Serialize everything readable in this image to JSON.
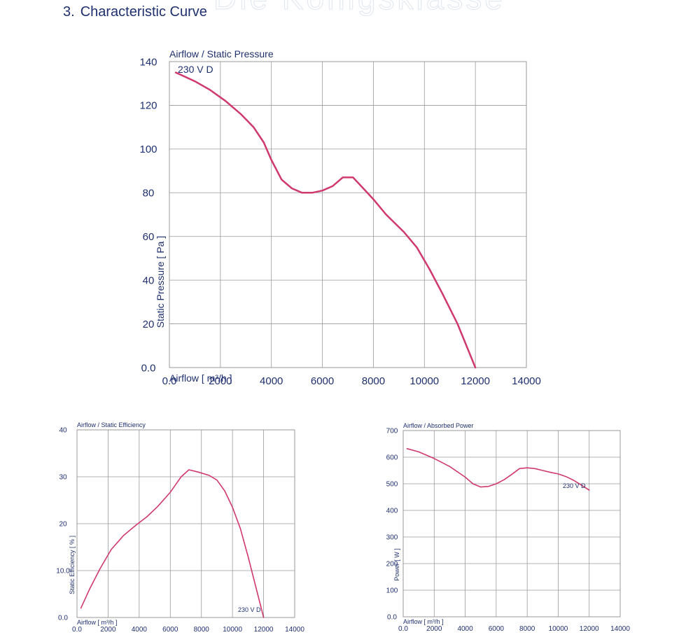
{
  "page": {
    "section_number": "3.",
    "section_title": "Characteristic Curve",
    "watermark": "Die Königsklasse"
  },
  "colors": {
    "curve": "#d03a6b",
    "grid": "#9a9a9a",
    "text": "#1f3070"
  },
  "chart_data": [
    {
      "type": "line",
      "title": "Airflow / Static Pressure",
      "xlabel": "Airflow [ m³/h ]",
      "ylabel": "Static Pressure [ Pa ]",
      "xlim": [
        0,
        14000
      ],
      "ylim": [
        0,
        140
      ],
      "xticks": [
        0,
        2000,
        4000,
        6000,
        8000,
        10000,
        12000,
        14000
      ],
      "xtick_labels": [
        "0.0",
        "2000",
        "4000",
        "6000",
        "8000",
        "10000",
        "12000",
        "14000"
      ],
      "yticks": [
        0,
        20,
        40,
        60,
        80,
        100,
        120,
        140
      ],
      "ytick_labels": [
        "0.0",
        "20",
        "40",
        "60",
        "80",
        "100",
        "120",
        "140"
      ],
      "grid": true,
      "series": [
        {
          "name": "230 V D",
          "x": [
            250,
            1000,
            1600,
            2200,
            2800,
            3300,
            3700,
            4000,
            4400,
            4800,
            5200,
            5600,
            6000,
            6400,
            6800,
            7200,
            7600,
            8000,
            8500,
            9200,
            9700,
            10200,
            10700,
            11300,
            12000
          ],
          "y": [
            135,
            131,
            127,
            122,
            116,
            110,
            103,
            95,
            86,
            82,
            80,
            80,
            81,
            83,
            87,
            87,
            82,
            77,
            70,
            62,
            55,
            45,
            34,
            20,
            0
          ]
        }
      ]
    },
    {
      "type": "line",
      "title": "Airflow / Static Efficiency",
      "xlabel": "Airflow [ m³/h ]",
      "ylabel": "Static Efficiency [ % ]",
      "xlim": [
        0,
        14000
      ],
      "ylim": [
        0,
        40
      ],
      "xticks": [
        0,
        2000,
        4000,
        6000,
        8000,
        10000,
        12000,
        14000
      ],
      "xtick_labels": [
        "0.0",
        "2000",
        "4000",
        "6000",
        "8000",
        "10000",
        "12000",
        "14000"
      ],
      "yticks": [
        0,
        10,
        20,
        30,
        40
      ],
      "ytick_labels": [
        "0.0",
        "10.0",
        "20",
        "30",
        "40"
      ],
      "grid": true,
      "series": [
        {
          "name": "230 V D",
          "x": [
            250,
            800,
            1500,
            2200,
            3000,
            3800,
            4500,
            5200,
            6000,
            6700,
            7200,
            7800,
            8500,
            9000,
            9500,
            10000,
            10500,
            11000,
            11500,
            12000
          ],
          "y": [
            2,
            6,
            10.5,
            14.5,
            17.5,
            19.7,
            21.5,
            23.7,
            26.7,
            30,
            31.5,
            31,
            30.3,
            29.3,
            27,
            23.5,
            19,
            13,
            6.5,
            0
          ]
        }
      ]
    },
    {
      "type": "line",
      "title": "Airflow / Absorbed Power",
      "xlabel": "Airflow [ m³/h ]",
      "ylabel": "Power [ W ]",
      "xlim": [
        0,
        14000
      ],
      "ylim": [
        0,
        700
      ],
      "xticks": [
        0,
        2000,
        4000,
        6000,
        8000,
        10000,
        12000,
        14000
      ],
      "xtick_labels": [
        "0.0",
        "2000",
        "4000",
        "6000",
        "8000",
        "10000",
        "12000",
        "14000"
      ],
      "yticks": [
        0,
        100,
        200,
        300,
        400,
        500,
        600,
        700
      ],
      "ytick_labels": [
        "0.0",
        "100",
        "200",
        "300",
        "400",
        "500",
        "600",
        "700"
      ],
      "grid": true,
      "series": [
        {
          "name": "230 V D",
          "x": [
            250,
            1000,
            2000,
            3000,
            4000,
            4500,
            5000,
            5500,
            6000,
            6500,
            7000,
            7500,
            8000,
            8500,
            9000,
            9500,
            10000,
            10500,
            11000,
            11500,
            12000
          ],
          "y": [
            632,
            620,
            595,
            565,
            525,
            500,
            488,
            490,
            500,
            515,
            535,
            557,
            560,
            557,
            550,
            543,
            537,
            527,
            513,
            495,
            476
          ]
        }
      ]
    }
  ]
}
